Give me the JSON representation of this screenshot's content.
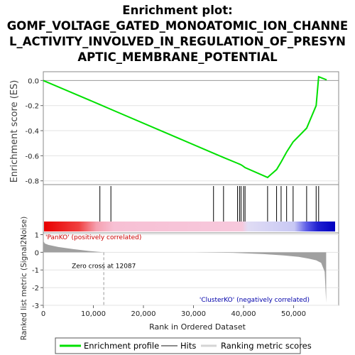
{
  "chart_data": {
    "type": "line",
    "title_lines": [
      "Enrichment plot:",
      "GOMF_VOLTAGE_GATED_MONOATOMIC_ION_CHANNE",
      "L_ACTIVITY_INVOLVED_IN_REGULATION_OF_PRESYN",
      "APTIC_MEMBRANE_POTENTIAL"
    ],
    "es_panel": {
      "ylabel": "Enrichment score (ES)",
      "ylim": [
        -0.83,
        0.07
      ],
      "yticks": [
        0.0,
        -0.2,
        -0.4,
        -0.6,
        -0.8
      ],
      "ytick_labels": [
        "0.0",
        "-0.2",
        "-0.4",
        "-0.6",
        "-0.8"
      ],
      "series": [
        {
          "name": "Enrichment profile",
          "color": "#00e000",
          "x": [
            0,
            11300,
            11300,
            13500,
            13500,
            34000,
            34000,
            36000,
            36000,
            38800,
            38800,
            39200,
            39200,
            39500,
            39500,
            40000,
            40000,
            40300,
            40300,
            44800,
            44800,
            46600,
            46600,
            47500,
            47500,
            48600,
            48600,
            49900,
            49900,
            52600,
            52600,
            54500,
            54500,
            55000,
            55000,
            56600
          ],
          "y": [
            0.0,
            -0.192,
            -0.192,
            -0.23,
            -0.23,
            -0.58,
            -0.58,
            -0.614,
            -0.614,
            -0.66,
            -0.66,
            -0.667,
            -0.667,
            -0.672,
            -0.672,
            -0.685,
            -0.685,
            -0.694,
            -0.694,
            -0.773,
            -0.773,
            -0.71,
            -0.71,
            -0.65,
            -0.65,
            -0.57,
            -0.57,
            -0.49,
            -0.49,
            -0.38,
            -0.38,
            -0.2,
            -0.2,
            0.03,
            0.03,
            0.005
          ]
        }
      ]
    },
    "hits_panel": {
      "legend_name": "Hits",
      "hit_ranks": [
        11300,
        13500,
        34000,
        36000,
        38800,
        39200,
        39500,
        40000,
        40300,
        44800,
        46600,
        47500,
        48600,
        49900,
        52600,
        54500,
        55000
      ]
    },
    "metric_panel": {
      "ylabel": "Ranked list metric (Signal2Noise)",
      "ylim": [
        -3,
        1.1
      ],
      "yticks": [
        1,
        0,
        -1,
        -2,
        -3
      ],
      "ytick_labels": [
        "1",
        "0",
        "-1",
        "-2",
        "-3"
      ],
      "legend_name": "Ranking metric scores",
      "zero_cross_label": "Zero cross at 12087",
      "zero_cross": 12087,
      "pos_label": "'PanKO' (positively correlated)",
      "neg_label": "'ClusterKO' (negatively correlated)",
      "pos_color": "#dd0000",
      "neg_color": "#0000cc",
      "profile": {
        "x": [
          0,
          300,
          1000,
          3000,
          6000,
          9000,
          12087,
          20000,
          30000,
          38000,
          44000,
          48000,
          51000,
          53000,
          54500,
          55500,
          56200,
          56500
        ],
        "y": [
          0.65,
          0.5,
          0.42,
          0.3,
          0.18,
          0.08,
          0.0,
          0.0,
          0.0,
          -0.03,
          -0.1,
          -0.18,
          -0.26,
          -0.36,
          -0.45,
          -0.6,
          -1.1,
          -2.85
        ]
      }
    },
    "xaxis": {
      "xlabel": "Rank in Ordered Dataset",
      "xlim": [
        0,
        59000
      ],
      "xticks": [
        0,
        10000,
        20000,
        30000,
        40000,
        50000
      ],
      "xtick_labels": [
        "0",
        "10,000",
        "20,000",
        "30,000",
        "40,000",
        "50,000"
      ]
    },
    "legend": {
      "items": [
        "Enrichment profile",
        "Hits",
        "Ranking metric scores"
      ],
      "placement": "bottom"
    }
  }
}
